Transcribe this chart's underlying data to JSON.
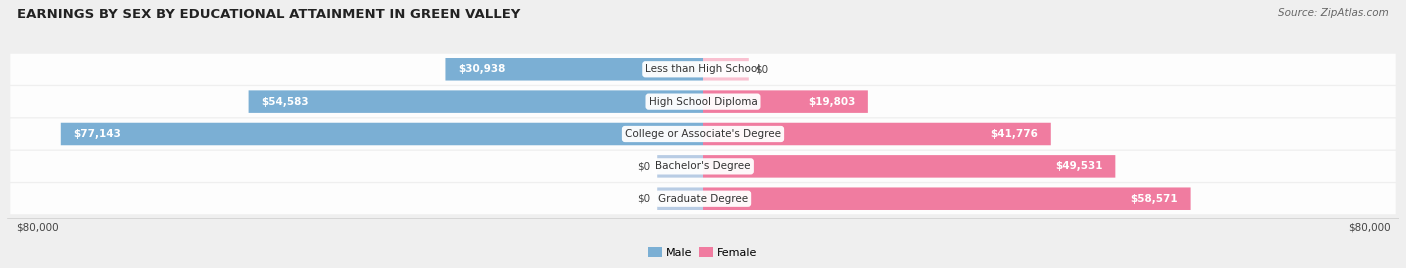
{
  "title": "EARNINGS BY SEX BY EDUCATIONAL ATTAINMENT IN GREEN VALLEY",
  "source": "Source: ZipAtlas.com",
  "categories": [
    "Less than High School",
    "High School Diploma",
    "College or Associate's Degree",
    "Bachelor's Degree",
    "Graduate Degree"
  ],
  "male_values": [
    30938,
    54583,
    77143,
    0,
    0
  ],
  "female_values": [
    0,
    19803,
    41776,
    49531,
    58571
  ],
  "male_labels": [
    "$30,938",
    "$54,583",
    "$77,143",
    "$0",
    "$0"
  ],
  "female_labels": [
    "$0",
    "$19,803",
    "$41,776",
    "$49,531",
    "$58,571"
  ],
  "male_color": "#7bafd4",
  "female_color": "#f07ca0",
  "male_color_light": "#b8cce4",
  "female_color_light": "#f9c0d0",
  "max_value": 80000,
  "x_tick_labels": [
    "$80,000",
    "$80,000"
  ],
  "background_color": "#efefef",
  "row_bg_color": "#ffffff",
  "title_fontsize": 9.5,
  "source_fontsize": 7.5,
  "label_fontsize": 7.5,
  "category_fontsize": 7.5,
  "legend_fontsize": 8,
  "figsize": [
    14.06,
    2.68
  ],
  "dpi": 100
}
